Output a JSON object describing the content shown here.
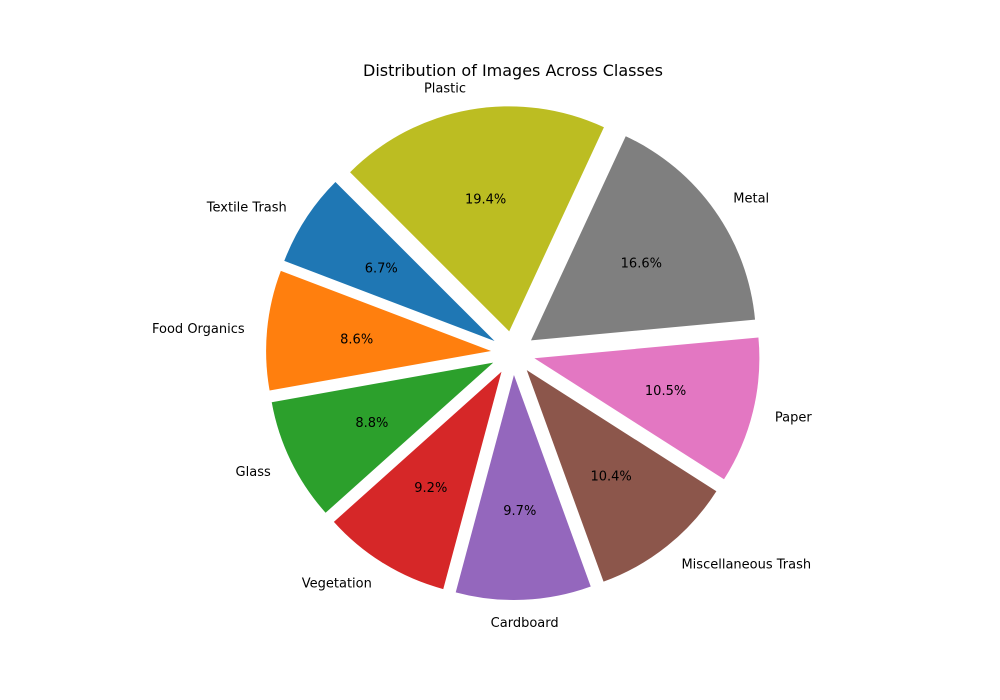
{
  "chart_data": {
    "type": "pie",
    "title": "Distribution of Images Across Classes",
    "start_angle_deg": 135,
    "direction": "counterclockwise",
    "explode": true,
    "slices": [
      {
        "label": "Textile Trash",
        "value": 6.7,
        "pct_label": "6.7%",
        "color": "#1f77b4"
      },
      {
        "label": "Food Organics",
        "value": 8.6,
        "pct_label": "8.6%",
        "color": "#ff7f0e"
      },
      {
        "label": "Glass",
        "value": 8.8,
        "pct_label": "8.8%",
        "color": "#2ca02c"
      },
      {
        "label": "Vegetation",
        "value": 9.2,
        "pct_label": "9.2%",
        "color": "#d62728"
      },
      {
        "label": "Cardboard",
        "value": 9.7,
        "pct_label": "9.7%",
        "color": "#9467bd"
      },
      {
        "label": "Miscellaneous Trash",
        "value": 10.4,
        "pct_label": "10.4%",
        "color": "#8c564b"
      },
      {
        "label": "Paper",
        "value": 10.5,
        "pct_label": "10.5%",
        "color": "#e377c2"
      },
      {
        "label": "Metal",
        "value": 16.6,
        "pct_label": "16.6%",
        "color": "#7f7f7f"
      },
      {
        "label": "Plastic",
        "value": 19.4,
        "pct_label": "19.4%",
        "color": "#bcbd22"
      }
    ]
  }
}
